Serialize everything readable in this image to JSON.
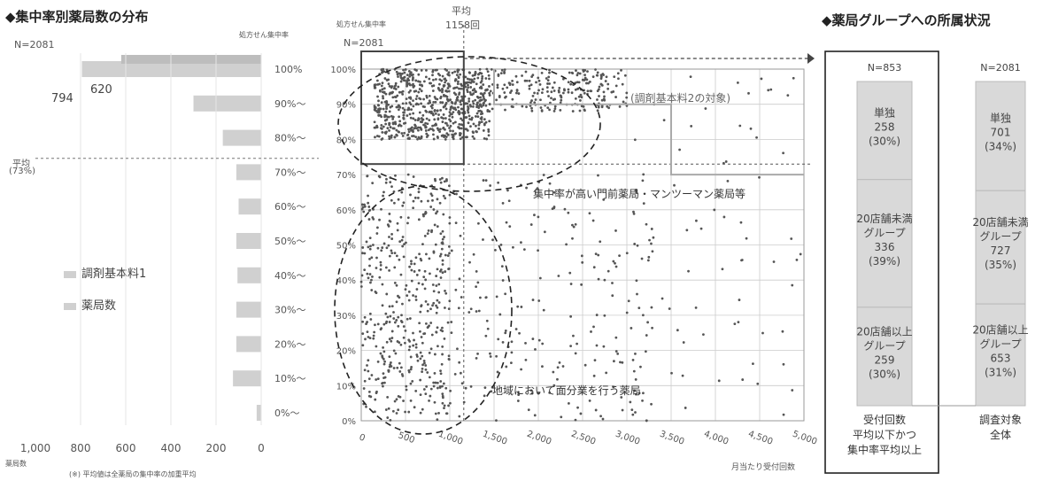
{
  "left_title": "◆集中率別薬局数の分布",
  "right_title": "◆薬局グループへの所属状況",
  "left_n": "N=2081",
  "left_footer_unit": "薬局数",
  "left_footnote": "(※) 平均値は全薬局の集中率の加重平均",
  "header_conc_small": "処方せん集中率",
  "header_conc_small2": "処方せん集中率",
  "scatter_n": "N=2081",
  "avg_x_label_1": "平均",
  "avg_x_label_2": "1158回",
  "avg_y_label_1": "平均",
  "avg_y_label_2": "(73%)",
  "annotation_kihon2": "(調剤基本料2の対象)",
  "annotation_monzen": "集中率が高い門前薬局・マンツーマン薬局等",
  "annotation_chiiki": "地域において面分業を行う薬局",
  "legend": [
    "調剤基本料1",
    "薬局数"
  ],
  "bar_value_labels": [
    "794",
    "620"
  ],
  "colors": {
    "bar": "#d0d0d0",
    "dot": "#555555",
    "grid": "#cccccc",
    "stack": "#d9d9d9"
  },
  "chart_data": [
    {
      "type": "bar",
      "orientation": "horizontal",
      "categories": [
        "100%",
        "90%～",
        "80%～",
        "70%～",
        "60%～",
        "50%～",
        "40%～",
        "30%～",
        "20%～",
        "10%～",
        "0%～"
      ],
      "xlim": [
        1000,
        0
      ],
      "x_ticks": [
        "1,000",
        "800",
        "600",
        "400",
        "200",
        "0"
      ],
      "series": [
        {
          "name": "薬局数",
          "values": [
            794,
            300,
            170,
            110,
            100,
            110,
            105,
            110,
            110,
            125,
            20
          ]
        },
        {
          "name": "調剤基本料1",
          "values": [
            620,
            0,
            0,
            0,
            0,
            0,
            0,
            0,
            0,
            0,
            0
          ]
        }
      ]
    },
    {
      "type": "scatter",
      "xlabel": "月当たり受付回数",
      "x_ticks": [
        "0",
        "500",
        "1,000",
        "1,500",
        "2,000",
        "2,500",
        "3,000",
        "3,500",
        "4,000",
        "4,500",
        "5,000"
      ],
      "y_ticks": [
        "0%",
        "10%",
        "20%",
        "30%",
        "40%",
        "50%",
        "60%",
        "70%",
        "80%",
        "90%",
        "100%"
      ],
      "xlim": [
        0,
        5000
      ],
      "ylim": [
        0,
        100
      ],
      "avg_x": 1158,
      "avg_y": 73
    },
    {
      "type": "bar",
      "stacked": true,
      "categories": [
        "受付回数平均以下かつ集中率平均以上",
        "調査対象全体"
      ],
      "n": [
        "N=853",
        "N=2081"
      ],
      "segments": [
        {
          "label_lines": [
            "単独"
          ],
          "values": [
            258,
            701
          ],
          "pct": [
            "(30%)",
            "(34%)"
          ]
        },
        {
          "label_lines": [
            "20店舗未満",
            "グループ"
          ],
          "values": [
            336,
            727
          ],
          "pct": [
            "(39%)",
            "(35%)"
          ]
        },
        {
          "label_lines": [
            "20店舗以上",
            "グループ"
          ],
          "values": [
            259,
            653
          ],
          "pct": [
            "(30%)",
            "(31%)"
          ]
        }
      ],
      "bottom_labels": [
        [
          "受付回数",
          "平均以下かつ",
          "集中率平均以上"
        ],
        [
          "調査対象",
          "全体"
        ]
      ]
    }
  ]
}
